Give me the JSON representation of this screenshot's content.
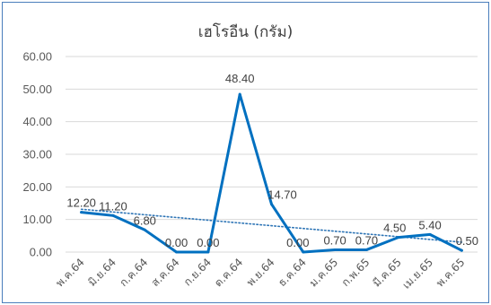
{
  "chart_data": {
    "type": "line",
    "title": "เฮโรอีน (กรัม)",
    "categories": [
      "พ.ค.64",
      "มิ.ย.64",
      "ก.ค.64",
      "ส.ค.64",
      "ก.ย.64",
      "ต.ค.64",
      "พ.ย.64",
      "ธ.ค.64",
      "ม.ค.65",
      "ก.พ.65",
      "มี.ค.65",
      "เม.ย.65",
      "พ.ค.65"
    ],
    "series": [
      {
        "values": [
          12.2,
          11.2,
          6.8,
          0.0,
          0.0,
          48.4,
          14.7,
          0.0,
          0.7,
          0.7,
          4.5,
          5.4,
          0.5
        ],
        "labels": [
          "12.20",
          "11.20",
          "6.80",
          "0.00",
          "0.00",
          "48.40",
          "14.70",
          "0.00",
          "0.70",
          "0.70",
          "4.50",
          "5.40",
          "0.50"
        ],
        "color": "#0070c0"
      }
    ],
    "trendline": {
      "style": "dotted",
      "color": "#2e75b6"
    },
    "yticks": [
      "0.00",
      "10.00",
      "20.00",
      "30.00",
      "40.00",
      "50.00",
      "60.00"
    ],
    "ylim": [
      0,
      60
    ],
    "grid": true,
    "gridColor": "#d9d9d9",
    "legend": "none"
  }
}
